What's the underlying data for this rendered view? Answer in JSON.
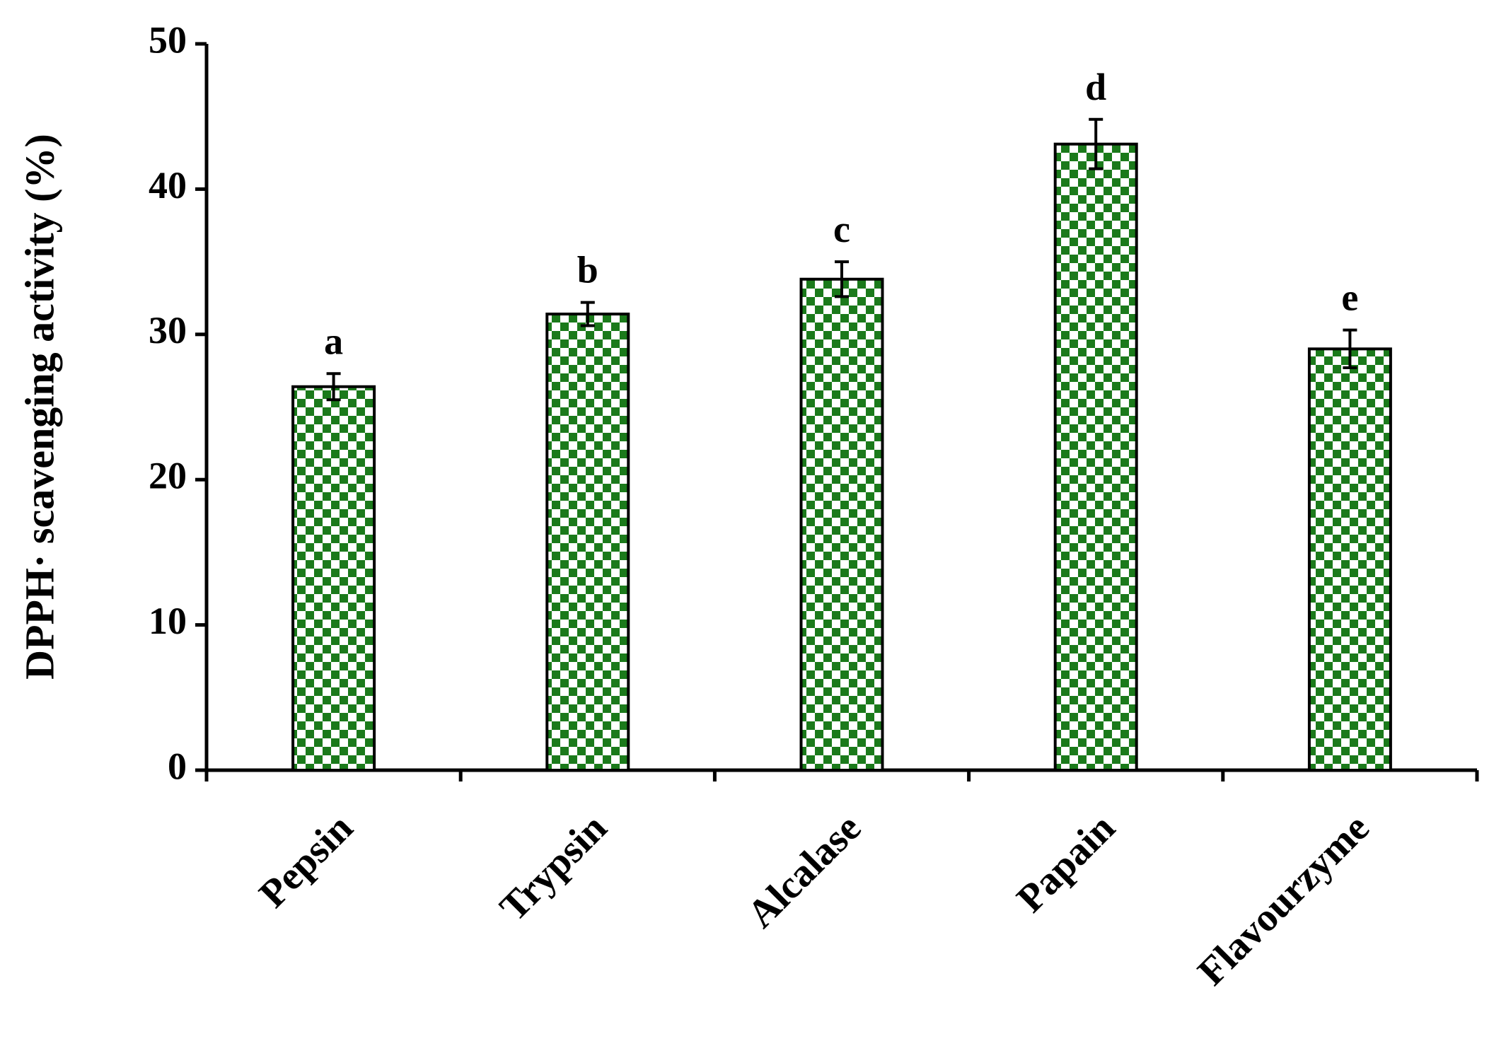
{
  "chart_data": {
    "type": "bar",
    "y_label": "DPPH· scavenging activity (%)",
    "categories": [
      "Pepsin",
      "Trypsin",
      "Alcalase",
      "Papain",
      "Flavourzyme"
    ],
    "values": [
      26.4,
      31.4,
      33.8,
      43.1,
      29.0
    ],
    "errors": [
      0.9,
      0.8,
      1.2,
      1.7,
      1.3
    ],
    "letters": [
      "a",
      "b",
      "c",
      "d",
      "e"
    ],
    "color": "#1b7a1b",
    "ylim": [
      0,
      50
    ],
    "yticks": [
      0,
      10,
      20,
      30,
      40,
      50
    ],
    "grid": false
  }
}
